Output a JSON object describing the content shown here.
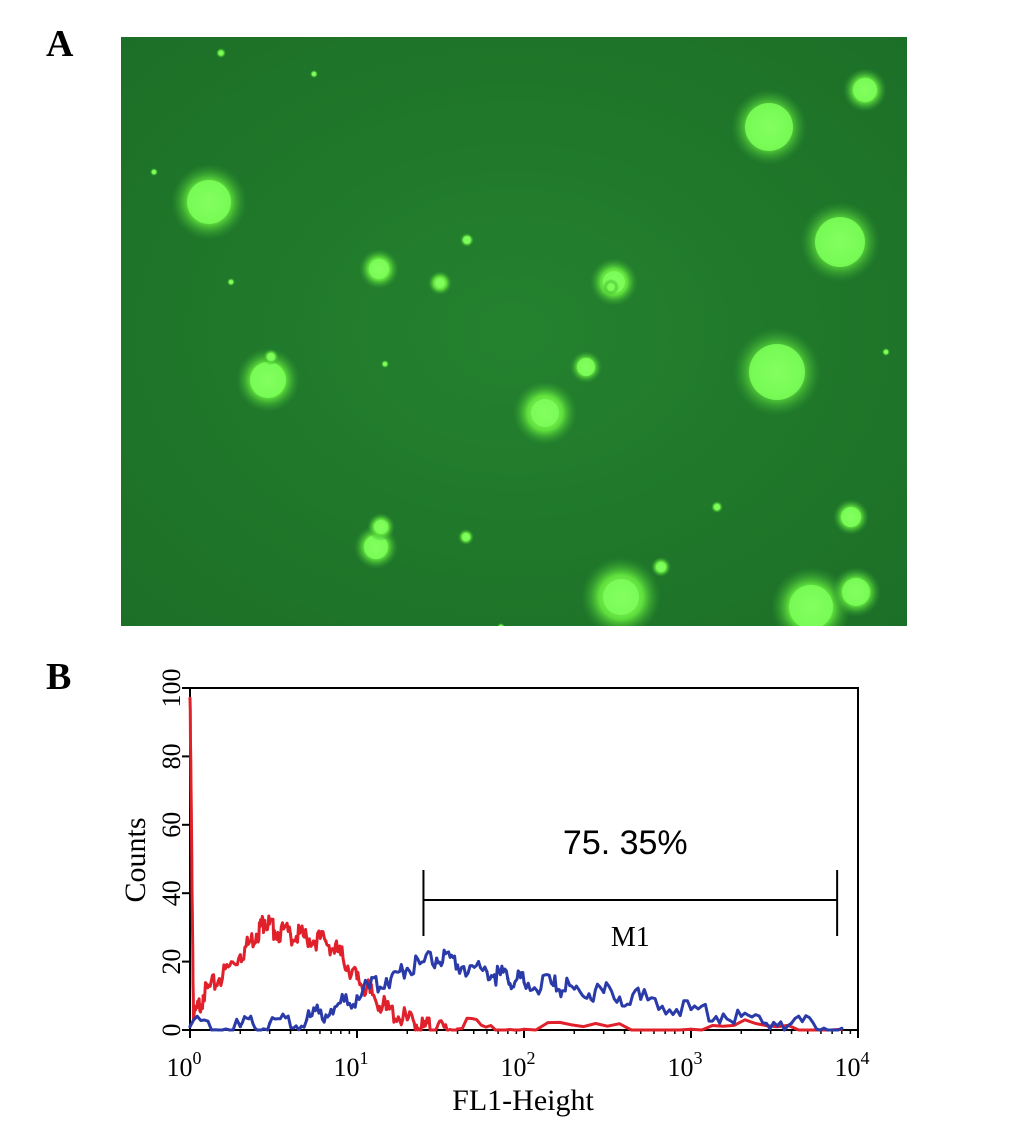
{
  "panels": {
    "a": "A",
    "b": "B"
  },
  "micrograph": {
    "background": "#1f7a2a",
    "foreground": "#7dff5a",
    "cells": "fluorescent-green-cells"
  },
  "chart_data": {
    "type": "line",
    "xlabel": "FL1-Height",
    "ylabel": "Counts",
    "xscale": "log",
    "xlim": [
      1,
      10000
    ],
    "ylim": [
      0,
      100
    ],
    "x_ticks": [
      {
        "base": "10",
        "exp": "0",
        "value": 1
      },
      {
        "base": "10",
        "exp": "1",
        "value": 10
      },
      {
        "base": "10",
        "exp": "2",
        "value": 100
      },
      {
        "base": "10",
        "exp": "3",
        "value": 1000
      },
      {
        "base": "10",
        "exp": "4",
        "value": 10000
      }
    ],
    "y_ticks": [
      "0",
      "20",
      "40",
      "60",
      "80",
      "100"
    ],
    "gate": {
      "name": "M1",
      "from": 25,
      "to": 7500,
      "y": 38,
      "percent_label": "75. 35%"
    },
    "series": [
      {
        "color": "#e0202a",
        "x": [
          1,
          1.05,
          1.2,
          1.5,
          2.0,
          2.5,
          2.8,
          3.2,
          4.0,
          5.0,
          6.5,
          8.0,
          10,
          12,
          15,
          20,
          25,
          30,
          40,
          100,
          1000,
          8000
        ],
        "y": [
          97,
          3,
          10,
          15,
          22,
          28,
          32,
          29,
          28,
          27,
          26,
          22,
          15,
          11,
          6,
          3,
          1,
          0.5,
          0.3,
          0.2,
          0.2,
          0.2
        ]
      },
      {
        "color": "#2a3aa8",
        "x": [
          1,
          2,
          3,
          5,
          7,
          10,
          15,
          20,
          30,
          40,
          60,
          80,
          100,
          150,
          200,
          300,
          500,
          1000,
          2000,
          4000,
          8000
        ],
        "y": [
          1,
          1,
          2,
          3,
          6,
          10,
          15,
          18,
          21,
          19,
          17,
          15,
          14,
          13,
          12,
          11,
          9,
          6,
          4,
          2,
          0.5
        ]
      }
    ]
  }
}
